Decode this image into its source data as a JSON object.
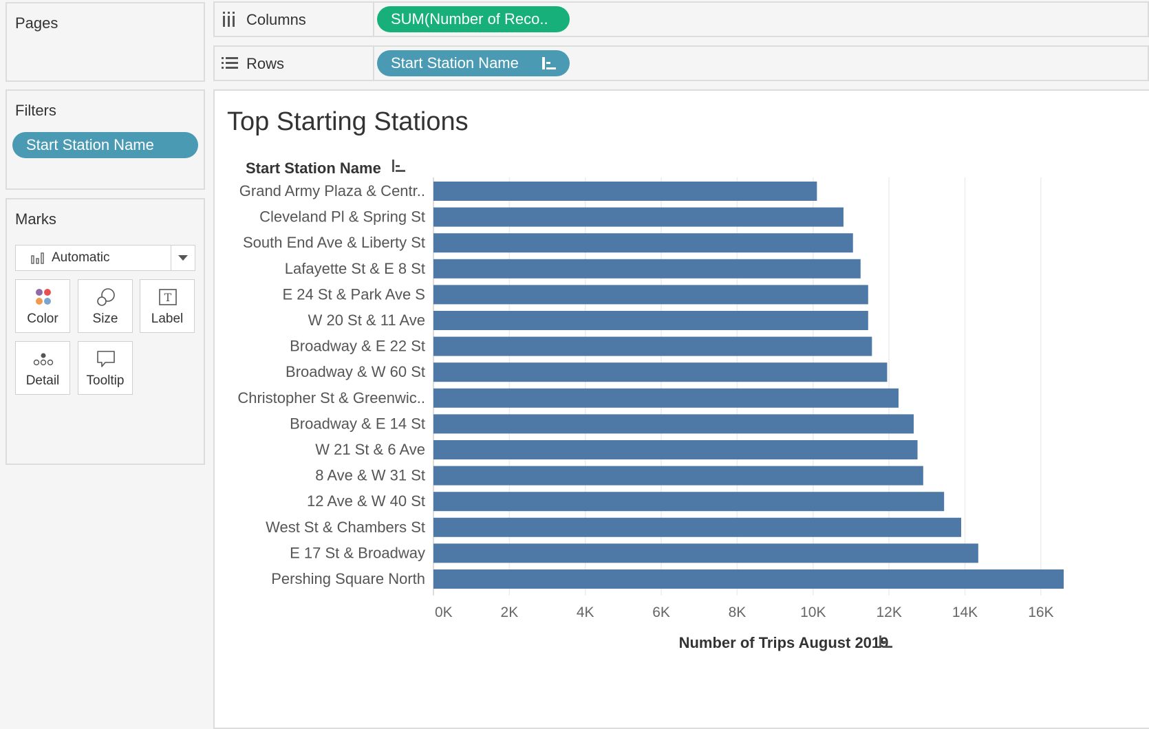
{
  "cards": {
    "pages_title": "Pages",
    "filters_title": "Filters",
    "filter_pill": "Start Station Name",
    "marks_title": "Marks",
    "mark_type": "Automatic",
    "mark_buttons": {
      "color": "Color",
      "size": "Size",
      "label": "Label",
      "detail": "Detail",
      "tooltip": "Tooltip"
    }
  },
  "shelves": {
    "columns_label": "Columns",
    "columns_pill": "SUM(Number of Reco..",
    "rows_label": "Rows",
    "rows_pill": "Start Station Name"
  },
  "colors": {
    "bar": "#4e79a7",
    "filter_pill": "#4a9ab4",
    "measure_pill": "#17b07a"
  },
  "chart_data": {
    "type": "bar",
    "orientation": "horizontal",
    "title": "Top Starting Stations",
    "row_header": "Start Station Name",
    "xlabel": "Number of Trips August 2019",
    "xlim": [
      0,
      16600
    ],
    "x_ticks": [
      0,
      2000,
      4000,
      6000,
      8000,
      10000,
      12000,
      14000,
      16000
    ],
    "x_tick_labels": [
      "0K",
      "2K",
      "4K",
      "6K",
      "8K",
      "10K",
      "12K",
      "14K",
      "16K"
    ],
    "grid": "vertical",
    "categories": [
      "Grand Army Plaza & Centr..",
      "Cleveland Pl & Spring St",
      "South End Ave & Liberty St",
      "Lafayette St & E 8 St",
      "E 24 St & Park Ave S",
      "W 20 St & 11 Ave",
      "Broadway & E 22 St",
      "Broadway & W 60 St",
      "Christopher St & Greenwic..",
      "Broadway & E 14 St",
      "W 21 St & 6 Ave",
      "8 Ave & W 31 St",
      "12 Ave & W 40 St",
      "West St & Chambers St",
      "E 17 St & Broadway",
      "Pershing Square North"
    ],
    "values": [
      10100,
      10800,
      11050,
      11250,
      11450,
      11450,
      11550,
      11950,
      12250,
      12650,
      12750,
      12900,
      13450,
      13900,
      14350,
      16600
    ]
  }
}
